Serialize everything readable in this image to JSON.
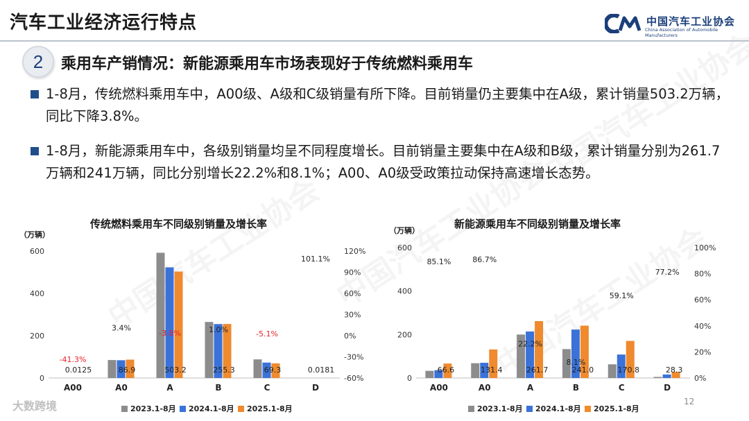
{
  "page": {
    "title": "汽车工业经济运行特点",
    "page_number": "12",
    "footer_brand": "大数跨境"
  },
  "logo": {
    "name_cn": "中国汽车工业协会",
    "name_en": "China Association of Automobile Manufacturers"
  },
  "watermark": {
    "cn": "中国汽车工业协会",
    "en": "China Association of Automobile Manufacturers"
  },
  "section": {
    "number": "2",
    "title": "乘用车产销情况：新能源乘用车市场表现好于传统燃料乘用车"
  },
  "bullets": [
    {
      "text": "1-8月，传统燃料乘用车中，A00级、A级和C级销量有所下降。目前销量仍主要集中在A级，累计销量503.2万辆，同比下降3.8%。"
    },
    {
      "text": "1-8月，新能源乘用车中，各级别销量均呈不同程度增长。目前销量主要集中在A级和B级，累计销量分别为261.7万辆和241万辆，同比分别增长22.2%和8.1%；A00、A0级受政策拉动保持高速增长态势。"
    }
  ],
  "colors": {
    "gray": "#8c8c8c",
    "blue": "#3a72d8",
    "orange": "#ef8a2e",
    "red_label": "#e8202a",
    "brand": "#1b3f7a",
    "bullet": "#1f4e8c"
  },
  "chart_data": [
    {
      "type": "bar",
      "title": "传统燃料乘用车不同级别销量及增长率",
      "unit": "（万辆）",
      "categories": [
        "A00",
        "A0",
        "A",
        "B",
        "C",
        "D"
      ],
      "ylim": [
        0,
        600
      ],
      "yticks": [
        0,
        200,
        400,
        600
      ],
      "y2lim": [
        -0.6,
        1.2
      ],
      "y2ticks": [
        "-60%",
        "-30%",
        "0%",
        "30%",
        "60%",
        "90%",
        "120%"
      ],
      "series": [
        {
          "name": "2023.1-8月",
          "color": "#8c8c8c",
          "values": [
            0.0,
            85,
            592,
            265,
            88,
            0.0
          ]
        },
        {
          "name": "2024.1-8月",
          "color": "#3a72d8",
          "values": [
            0.0,
            84,
            523,
            255,
            73,
            0.0
          ]
        },
        {
          "name": "2025.1-8月",
          "color": "#ef8a2e",
          "values": [
            0.0125,
            86.9,
            503.2,
            255.3,
            69.3,
            0.0181
          ]
        }
      ],
      "value_labels": [
        "0.0125",
        "86.9",
        "503.2",
        "255.3",
        "69.3",
        "0.0181"
      ],
      "growth_labels": [
        "-41.3%",
        "3.4%",
        "-3.8%",
        "1.0%",
        "-5.1%",
        "101.1%"
      ],
      "growth_values": [
        -0.413,
        0.034,
        -0.038,
        0.01,
        -0.051,
        1.011
      ],
      "growth_negative_red": [
        true,
        false,
        true,
        false,
        true,
        false
      ]
    },
    {
      "type": "bar",
      "title": "新能源乘用车不同级别销量及增长率",
      "unit": "（万辆）",
      "categories": [
        "A00",
        "A0",
        "A",
        "B",
        "C",
        "D"
      ],
      "ylim": [
        0,
        600
      ],
      "yticks": [
        0,
        200,
        400,
        600
      ],
      "y2lim": [
        0,
        1.0
      ],
      "y2ticks": [
        "0%",
        "20%",
        "40%",
        "60%",
        "80%",
        "100%"
      ],
      "series": [
        {
          "name": "2023.1-8月",
          "color": "#8c8c8c",
          "values": [
            33,
            68,
            200,
            133,
            63,
            5
          ]
        },
        {
          "name": "2024.1-8月",
          "color": "#3a72d8",
          "values": [
            36,
            70,
            214,
            223,
            108,
            16
          ]
        },
        {
          "name": "2025.1-8月",
          "color": "#ef8a2e",
          "values": [
            66.6,
            131.4,
            261.7,
            241.0,
            170.8,
            28.3
          ]
        }
      ],
      "value_labels": [
        "66.6",
        "131.4",
        "261.7",
        "241.0",
        "170.8",
        "28.3"
      ],
      "growth_labels": [
        "85.1%",
        "86.7%",
        "22.2%",
        "8.1%",
        "59.1%",
        "77.2%"
      ],
      "growth_values": [
        0.851,
        0.867,
        0.222,
        0.081,
        0.591,
        0.772
      ],
      "growth_negative_red": [
        false,
        false,
        false,
        false,
        false,
        false
      ]
    }
  ]
}
